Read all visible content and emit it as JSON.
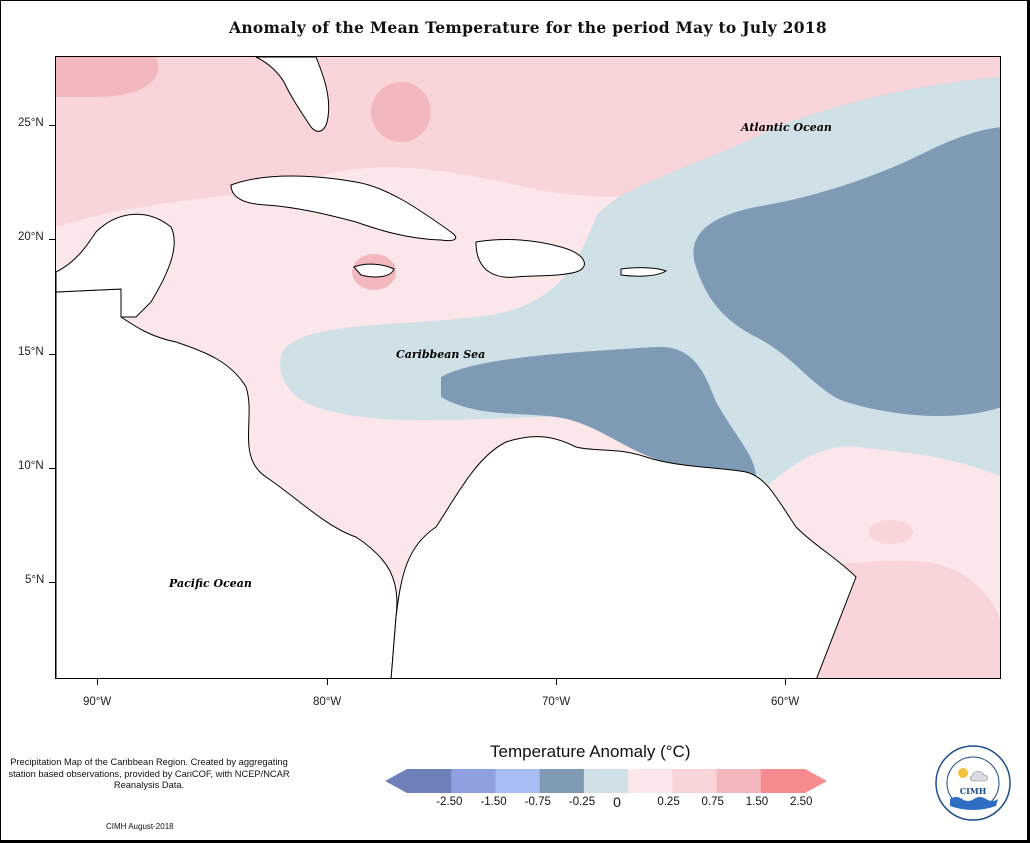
{
  "title": "Anomaly of the Mean Temperature for the period May to July 2018",
  "map_labels": {
    "atlantic": "Atlantic Ocean",
    "caribbean": "Caribbean Sea",
    "pacific": "Pacific Ocean"
  },
  "y_ticks": [
    "25°N",
    "20°N",
    "15°N",
    "10°N",
    "5°N"
  ],
  "x_ticks": [
    "90°W",
    "80°W",
    "70°W",
    "60°W"
  ],
  "footer_note": "Precipitation Map of the Caribbean Region. Created by aggregating station based observations, provided by CariCOF, with NCEP/NCAR Reanalysis Data.",
  "credit": "CIMH August-2018",
  "legend": {
    "title": "Temperature Anomaly (°C)",
    "labels": [
      "-2.50",
      "-1.50",
      "-0.75",
      "-0.25",
      "0",
      "0.25",
      "0.75",
      "1.50",
      "2.50"
    ],
    "colors": [
      "#6f7fb8",
      "#8fa0e0",
      "#a9bdf5",
      "#7e9ab5",
      "#cfe0e6",
      "#fbe7e9",
      "#f9d4d8",
      "#f2b8bd",
      "#f78a8e"
    ]
  },
  "logo": {
    "top_text": "Caribbean Institute for",
    "bottom_text": "Meteorology and Hydrology",
    "name": "CIMH"
  },
  "colors": {
    "strong_negative": "#7e9ab5",
    "weak_negative": "#cfe0e6",
    "neutral": "#fbe7e9",
    "weak_positive": "#f9d4d8",
    "positive": "#f2b8bd",
    "land_outline": "#000000"
  }
}
